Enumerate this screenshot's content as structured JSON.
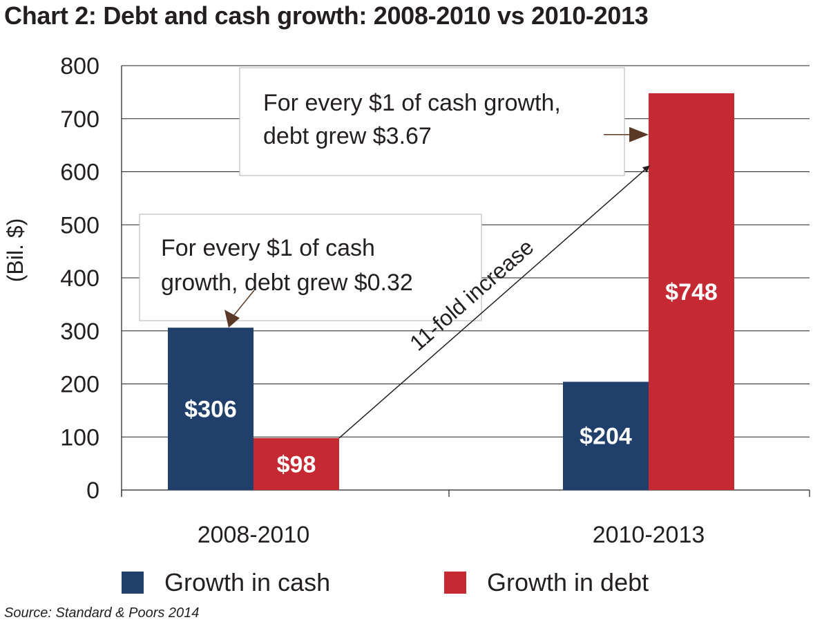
{
  "title": "Chart 2: Debt and cash growth: 2008-2010 vs 2010-2013",
  "source": "Source: Standard & Poors 2014",
  "colors": {
    "cash": "#213f6b",
    "debt": "#c52a34",
    "grid": "#231f20",
    "arrow_brown": "#5a3a26"
  },
  "chart_data": {
    "type": "bar",
    "title": "Chart 2: Debt and cash growth: 2008-2010 vs 2010-2013",
    "ylabel": "(Bil. $)",
    "xlabel": "",
    "ylim": [
      0,
      800
    ],
    "yticks": [
      "0",
      "100",
      "200",
      "300",
      "400",
      "500",
      "600",
      "700",
      "800"
    ],
    "categories": [
      "2008-2010",
      "2010-2013"
    ],
    "series": [
      {
        "name": "Growth in cash",
        "values": [
          306,
          204
        ],
        "labels": [
          "$306",
          "$204"
        ],
        "color": "#213f6b"
      },
      {
        "name": "Growth in debt",
        "values": [
          98,
          748
        ],
        "labels": [
          "$98",
          "$748"
        ],
        "color": "#c52a34"
      }
    ],
    "grid": true,
    "legend": "bottom",
    "annotations": [
      {
        "lines": [
          "For every $1 of cash",
          "growth, debt grew $0.32"
        ]
      },
      {
        "lines": [
          "For every $1 of cash growth,",
          "debt grew $3.67"
        ]
      },
      {
        "text": "11-fold increase"
      }
    ]
  }
}
